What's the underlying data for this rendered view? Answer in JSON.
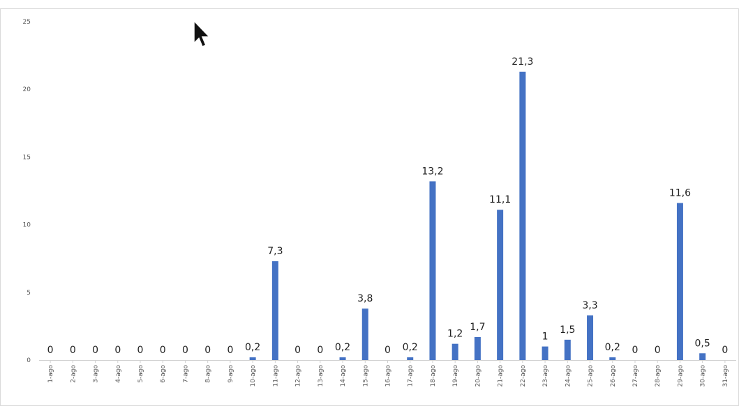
{
  "chart_data": {
    "type": "bar",
    "title": "",
    "xlabel": "",
    "ylabel": "",
    "ylim": [
      0,
      25
    ],
    "yticks": [
      "0",
      "5",
      "10",
      "15",
      "20",
      "25"
    ],
    "grid": false,
    "legend": "none",
    "bar_color": "#4472c4",
    "title_color": "#3b6fc4",
    "categories": [
      "1-ago",
      "2-ago",
      "3-ago",
      "4-ago",
      "5-ago",
      "6-ago",
      "7-ago",
      "8-ago",
      "9-ago",
      "10-ago",
      "11-ago",
      "12-ago",
      "13-ago",
      "14-ago",
      "15-ago",
      "16-ago",
      "17-ago",
      "18-ago",
      "19-ago",
      "20-ago",
      "21-ago",
      "22-ago",
      "23-ago",
      "24-ago",
      "25-ago",
      "26-ago",
      "27-ago",
      "28-ago",
      "29-ago",
      "30-ago",
      "31-ago"
    ],
    "values": [
      0,
      0,
      0,
      0,
      0,
      0,
      0,
      0,
      0,
      0.2,
      7.3,
      0,
      0,
      0.2,
      3.8,
      0,
      0.2,
      13.2,
      1.2,
      1.7,
      11.1,
      21.3,
      1,
      1.5,
      3.3,
      0.2,
      0,
      0,
      11.6,
      0.5,
      0
    ],
    "data_labels": [
      "0",
      "0",
      "0",
      "0",
      "0",
      "0",
      "0",
      "0",
      "0",
      "0,2",
      "7,3",
      "0",
      "0",
      "0,2",
      "3,8",
      "0",
      "0,2",
      "13,2",
      "1,2",
      "1,7",
      "11,1",
      "21,3",
      "1",
      "1,5",
      "3,3",
      "0,2",
      "0",
      "0",
      "11,6",
      "0,5",
      "0"
    ]
  },
  "overlay": {
    "cursor_icon": "arrow-cursor-icon"
  }
}
